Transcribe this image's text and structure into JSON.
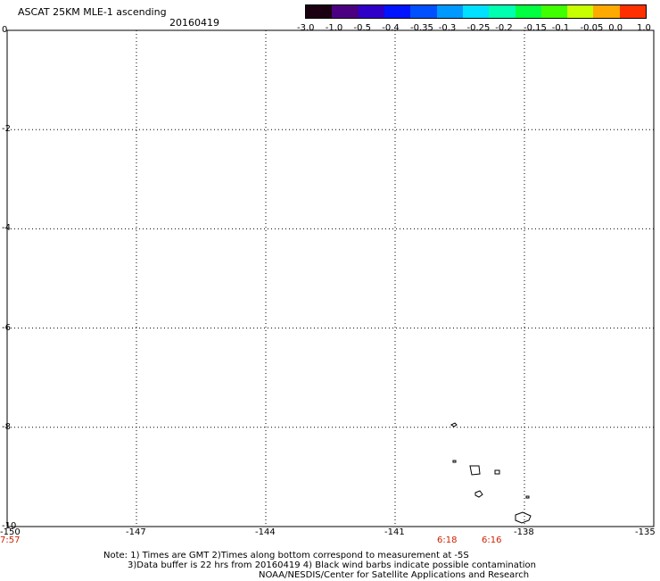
{
  "header": {
    "title": "ASCAT 25KM MLE-1 ascending",
    "date": "20160419"
  },
  "colorbar": {
    "labels": [
      "-3.0",
      "-1.0",
      "-0.5",
      "-0.4",
      "-0.35",
      "-0.3",
      "-0.25",
      "-0.2",
      "-0.15",
      "-0.1",
      "-0.05",
      "0.0",
      "1.0"
    ],
    "colors": [
      "#1a0010",
      "#4b0082",
      "#2f00c8",
      "#0014ff",
      "#0050ff",
      "#0099ff",
      "#00e0ff",
      "#00ffb0",
      "#00ff40",
      "#40ff00",
      "#c8ff00",
      "#ffaa00",
      "#ff3000"
    ]
  },
  "map": {
    "lon_range": [
      -150,
      -135
    ],
    "lat_range": [
      -10,
      0
    ],
    "x_ticks": [
      "-150",
      "-147",
      "-144",
      "-141",
      "-138",
      "-135"
    ],
    "y_ticks": [
      "0",
      "-2",
      "-4",
      "-6",
      "-8",
      "-10"
    ],
    "time_labels": [
      "7:57",
      "6:18",
      "6:16"
    ],
    "swaths": [
      {
        "name": "west",
        "colors": [
          "#0a5cff",
          "#0845ff",
          "#0a5cff",
          "#0b60ff"
        ]
      },
      {
        "name": "east",
        "colors": [
          "#0a60ff",
          "#0c8cff",
          "#00e6f0",
          "#00f0e0",
          "#00ff80"
        ]
      }
    ]
  },
  "notes": {
    "line1": "Note: 1) Times are GMT 2)Times along bottom correspond to measurement at -5S",
    "line2": "3)Data buffer is 22 hrs from 20160419 4) Black wind barbs indicate possible contamination",
    "line3": "NOAA/NESDIS/Center for Satellite Applications and Research"
  }
}
